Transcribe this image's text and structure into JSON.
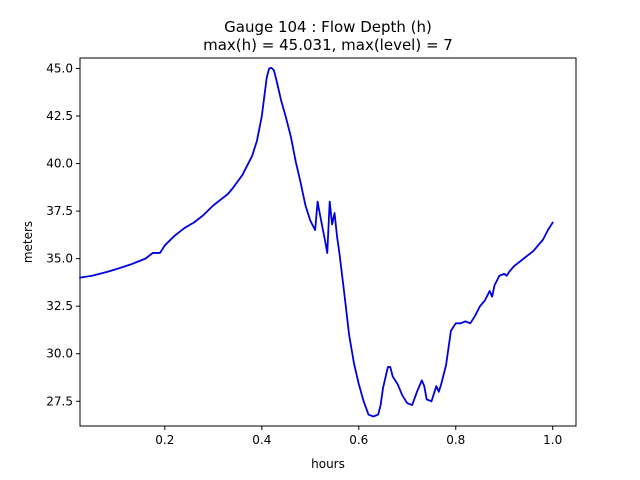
{
  "chart_data": {
    "type": "line",
    "title_line1": "Gauge 104 : Flow Depth (h)",
    "title_line2": "max(h) =  45.031,    max(level) = 7",
    "xlabel": "hours",
    "ylabel": "meters",
    "xlim": [
      0.025,
      1.048
    ],
    "ylim": [
      26.2,
      45.55
    ],
    "xticks": [
      0.2,
      0.4,
      0.6,
      0.8,
      1.0
    ],
    "xtick_labels": [
      "0.2",
      "0.4",
      "0.6",
      "0.8",
      "1.0"
    ],
    "yticks": [
      27.5,
      30.0,
      32.5,
      35.0,
      37.5,
      40.0,
      42.5,
      45.0
    ],
    "ytick_labels": [
      "27.5",
      "30.0",
      "32.5",
      "35.0",
      "37.5",
      "40.0",
      "42.5",
      "45.0"
    ],
    "grid": false,
    "series": [
      {
        "color": "#0000dd",
        "x": [
          0.025,
          0.05,
          0.08,
          0.1,
          0.13,
          0.16,
          0.175,
          0.19,
          0.2,
          0.22,
          0.24,
          0.26,
          0.28,
          0.3,
          0.32,
          0.33,
          0.34,
          0.36,
          0.38,
          0.39,
          0.4,
          0.41,
          0.415,
          0.42,
          0.425,
          0.43,
          0.44,
          0.45,
          0.46,
          0.47,
          0.48,
          0.49,
          0.5,
          0.51,
          0.515,
          0.52,
          0.53,
          0.535,
          0.54,
          0.545,
          0.55,
          0.555,
          0.56,
          0.57,
          0.58,
          0.59,
          0.6,
          0.61,
          0.62,
          0.63,
          0.64,
          0.645,
          0.65,
          0.66,
          0.665,
          0.67,
          0.68,
          0.69,
          0.7,
          0.71,
          0.72,
          0.73,
          0.735,
          0.74,
          0.75,
          0.76,
          0.765,
          0.77,
          0.78,
          0.79,
          0.8,
          0.81,
          0.82,
          0.83,
          0.84,
          0.85,
          0.86,
          0.87,
          0.875,
          0.88,
          0.89,
          0.9,
          0.905,
          0.91,
          0.92,
          0.93,
          0.94,
          0.95,
          0.96,
          0.97,
          0.98,
          0.99,
          1.0
        ],
        "y": [
          34.0,
          34.1,
          34.3,
          34.45,
          34.7,
          35.0,
          35.3,
          35.3,
          35.7,
          36.2,
          36.6,
          36.9,
          37.3,
          37.8,
          38.2,
          38.4,
          38.7,
          39.4,
          40.4,
          41.2,
          42.5,
          44.5,
          45.0,
          45.03,
          44.9,
          44.4,
          43.3,
          42.4,
          41.4,
          40.1,
          39.0,
          37.8,
          37.0,
          36.5,
          38.0,
          37.3,
          36.0,
          35.3,
          38.0,
          36.8,
          37.4,
          36.2,
          35.3,
          33.2,
          31.0,
          29.5,
          28.4,
          27.5,
          26.8,
          26.7,
          26.8,
          27.3,
          28.2,
          29.3,
          29.3,
          28.8,
          28.4,
          27.8,
          27.4,
          27.3,
          28.0,
          28.6,
          28.3,
          27.6,
          27.5,
          28.3,
          28.0,
          28.4,
          29.4,
          31.2,
          31.6,
          31.6,
          31.7,
          31.6,
          32.0,
          32.5,
          32.8,
          33.3,
          33.0,
          33.6,
          34.1,
          34.2,
          34.1,
          34.3,
          34.6,
          34.8,
          35.0,
          35.2,
          35.4,
          35.7,
          36.0,
          36.5,
          36.9
        ]
      }
    ]
  }
}
